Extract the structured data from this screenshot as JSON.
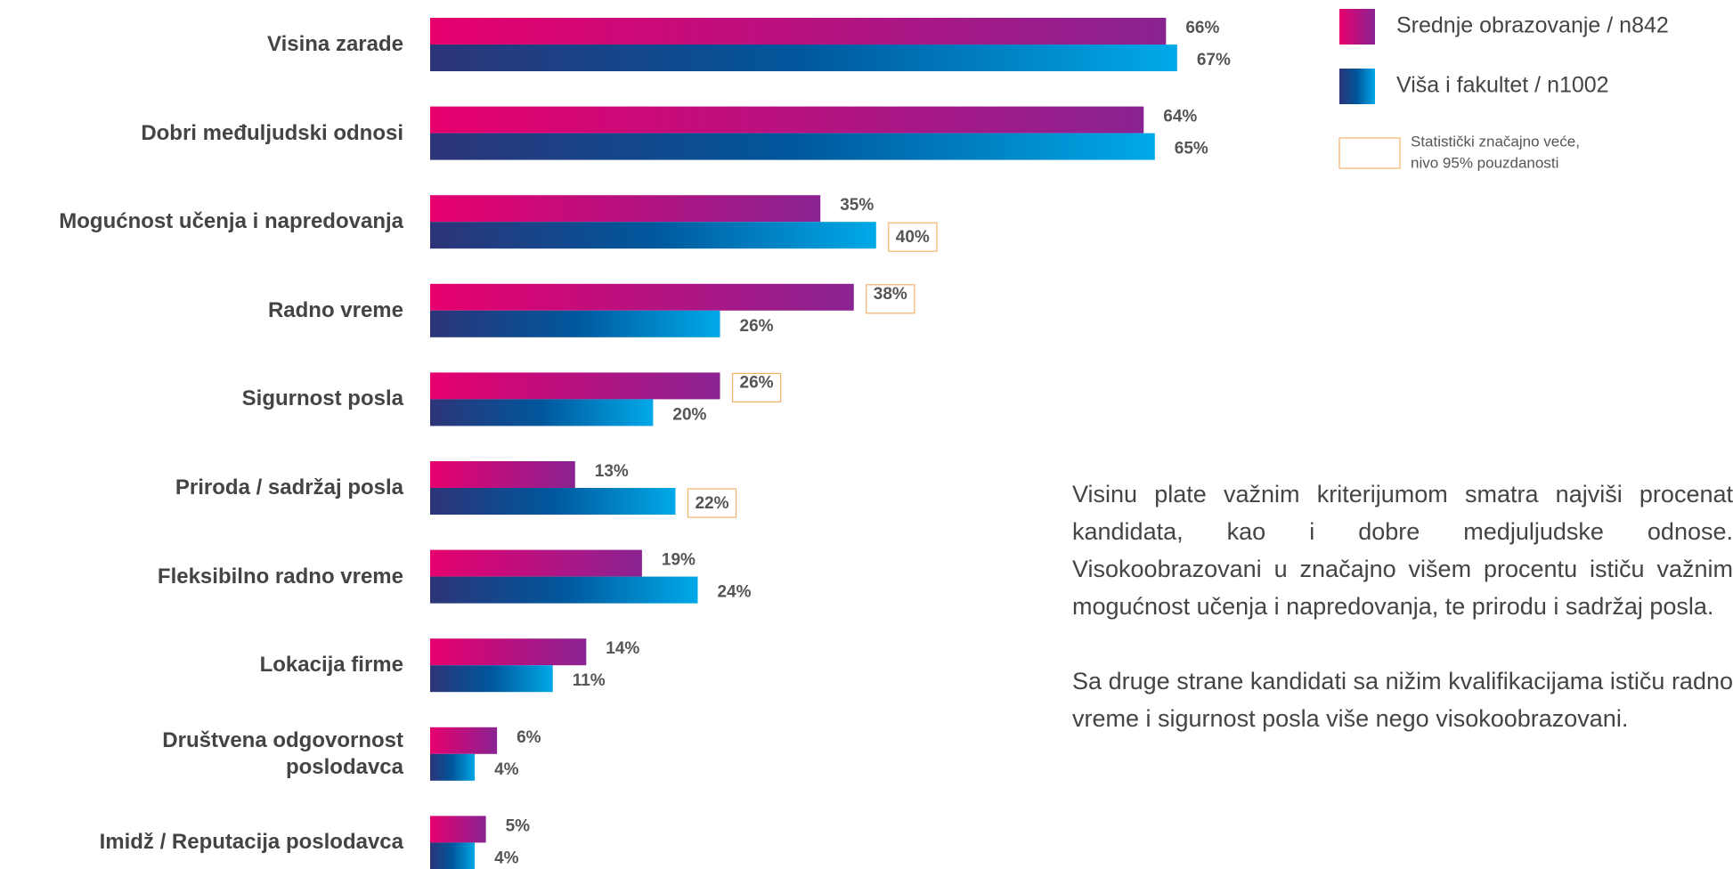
{
  "chart_data": {
    "type": "bar",
    "orientation": "horizontal",
    "categories": [
      "Visina zarade",
      "Dobri međuljudski odnosi",
      "Mogućnost učenja i napredovanja",
      "Radno vreme",
      "Sigurnost posla",
      "Priroda / sadržaj posla",
      "Fleksibilno radno vreme",
      "Lokacija firme",
      "Društvena odgovornost\nposlodavca",
      "Imidž / Reputacija poslodavca"
    ],
    "series": [
      {
        "name": "Srednje obrazovanje / n842",
        "colors": [
          "#e6006e",
          "#8a2392"
        ],
        "values": [
          66,
          64,
          35,
          38,
          26,
          13,
          19,
          14,
          6,
          5
        ],
        "value_labels": [
          "66%",
          "64%",
          "35%",
          "38%",
          "26%",
          "13%",
          "19%",
          "14%",
          "6%",
          "5%"
        ],
        "significant": [
          false,
          false,
          false,
          true,
          true,
          false,
          false,
          false,
          false,
          false
        ]
      },
      {
        "name": "Viša i fakultet / n1002",
        "colors": [
          "#2d3478",
          "#00579c",
          "#00a9e8"
        ],
        "values": [
          67,
          65,
          40,
          26,
          20,
          22,
          24,
          11,
          4,
          4
        ],
        "value_labels": [
          "67%",
          "65%",
          "40%",
          "26%",
          "20%",
          "22%",
          "24%",
          "11%",
          "4%",
          "4%"
        ],
        "significant": [
          false,
          false,
          true,
          false,
          false,
          true,
          false,
          false,
          false,
          false
        ]
      }
    ],
    "xlim": [
      0,
      100
    ],
    "legend": "top-right",
    "significance_color": "#f5b26b",
    "note": [
      "Statistički značajno veće,",
      "nivo 95% pouzdanosti"
    ]
  },
  "text": [
    "Visinu plate važnim kriterijumom smatra najviši procenat kandidata, kao i dobre medjuljudske odnose.  Visokoobrazovani u značajno višem procentu ističu važnim mogućnost učenja i napredovanja, te prirodu i sadržaj posla.",
    "Sa druge strane kandidati sa nižim kvalifikacijama ističu radno vreme i sigurnost posla više nego visokoobrazovani."
  ]
}
